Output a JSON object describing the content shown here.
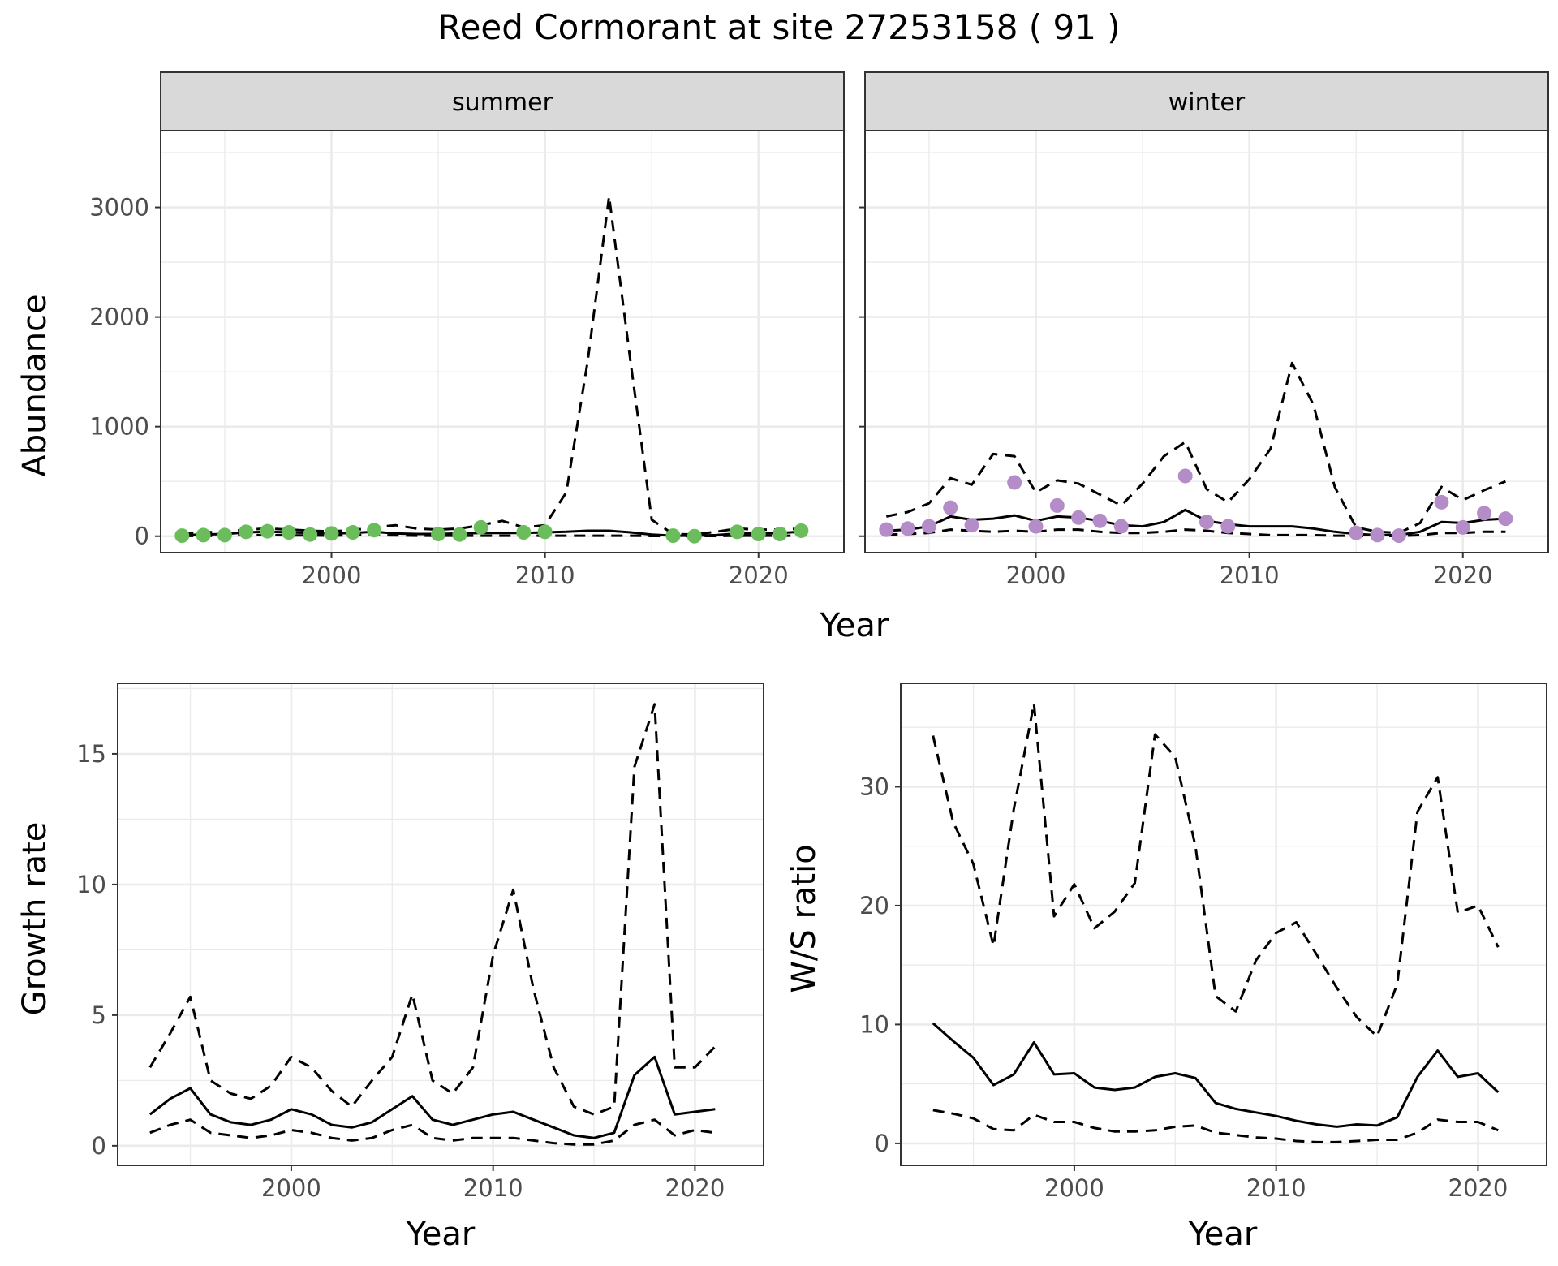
{
  "title": "Reed Cormorant at site 27253158 ( 91 )",
  "chart_data": [
    {
      "type": "line",
      "panel": "summer",
      "xlabel": "Year",
      "ylabel": "Abundance",
      "xlim": [
        1992,
        2024
      ],
      "ylim": [
        -150,
        3700
      ],
      "xticks": [
        2000,
        2010,
        2020
      ],
      "yticks": [
        0,
        1000,
        2000,
        3000
      ],
      "grid": true,
      "point_color": "#6bbd5b",
      "x": [
        1993,
        1994,
        1995,
        1996,
        1997,
        1998,
        1999,
        2000,
        2001,
        2002,
        2003,
        2004,
        2005,
        2006,
        2007,
        2008,
        2009,
        2010,
        2011,
        2012,
        2013,
        2014,
        2015,
        2016,
        2017,
        2018,
        2019,
        2020,
        2021,
        2022
      ],
      "series": [
        {
          "role": "estimate",
          "style": "solid",
          "values": [
            10,
            15,
            20,
            35,
            40,
            35,
            30,
            25,
            30,
            40,
            25,
            20,
            20,
            25,
            30,
            30,
            30,
            35,
            40,
            50,
            50,
            35,
            15,
            5,
            5,
            10,
            25,
            25,
            30,
            40
          ]
        },
        {
          "role": "upper",
          "style": "dashed",
          "values": [
            30,
            35,
            40,
            60,
            70,
            60,
            50,
            45,
            55,
            80,
            100,
            70,
            60,
            70,
            100,
            140,
            80,
            100,
            400,
            1600,
            3100,
            1600,
            150,
            20,
            15,
            40,
            70,
            60,
            60,
            70
          ]
        },
        {
          "role": "lower",
          "style": "dashed",
          "values": [
            2,
            3,
            5,
            10,
            10,
            8,
            8,
            5,
            10,
            10,
            8,
            5,
            5,
            5,
            5,
            5,
            5,
            5,
            5,
            5,
            5,
            5,
            2,
            1,
            1,
            2,
            5,
            5,
            5,
            5
          ]
        },
        {
          "role": "observed",
          "style": "points",
          "values": [
            5,
            10,
            10,
            40,
            45,
            35,
            15,
            25,
            35,
            55,
            null,
            null,
            20,
            15,
            80,
            null,
            35,
            40,
            null,
            null,
            null,
            null,
            null,
            5,
            0,
            null,
            40,
            20,
            20,
            50
          ]
        }
      ]
    },
    {
      "type": "line",
      "panel": "winter",
      "xlabel": "Year",
      "ylabel": "Abundance",
      "xlim": [
        1992,
        2024
      ],
      "ylim": [
        -150,
        3700
      ],
      "xticks": [
        2000,
        2010,
        2020
      ],
      "yticks": [
        0,
        1000,
        2000,
        3000
      ],
      "grid": true,
      "point_color": "#b48cc8",
      "x": [
        1993,
        1994,
        1995,
        1996,
        1997,
        1998,
        1999,
        2000,
        2001,
        2002,
        2003,
        2004,
        2005,
        2006,
        2007,
        2008,
        2009,
        2010,
        2011,
        2012,
        2013,
        2014,
        2015,
        2016,
        2017,
        2018,
        2019,
        2020,
        2021,
        2022
      ],
      "series": [
        {
          "role": "estimate",
          "style": "solid",
          "values": [
            50,
            60,
            90,
            180,
            150,
            160,
            190,
            140,
            180,
            170,
            140,
            100,
            90,
            130,
            240,
            140,
            110,
            90,
            90,
            90,
            70,
            40,
            20,
            10,
            10,
            40,
            130,
            120,
            150,
            160
          ]
        },
        {
          "role": "upper",
          "style": "dashed",
          "values": [
            180,
            220,
            300,
            530,
            470,
            750,
            730,
            400,
            510,
            480,
            380,
            280,
            480,
            730,
            860,
            430,
            310,
            520,
            800,
            1580,
            1200,
            450,
            80,
            40,
            30,
            120,
            450,
            330,
            420,
            500
          ]
        },
        {
          "role": "lower",
          "style": "dashed",
          "values": [
            15,
            20,
            30,
            60,
            50,
            40,
            50,
            40,
            60,
            60,
            40,
            30,
            30,
            40,
            60,
            50,
            30,
            20,
            10,
            10,
            10,
            5,
            5,
            2,
            2,
            10,
            30,
            30,
            40,
            40
          ]
        },
        {
          "role": "observed",
          "style": "points",
          "values": [
            60,
            70,
            90,
            260,
            100,
            null,
            490,
            90,
            280,
            170,
            140,
            90,
            null,
            null,
            550,
            130,
            90,
            null,
            null,
            null,
            null,
            null,
            30,
            10,
            5,
            null,
            310,
            80,
            210,
            160
          ]
        }
      ]
    },
    {
      "type": "line",
      "xlabel": "Year",
      "ylabel": "Growth rate",
      "xlim": [
        1991.4,
        2023.4
      ],
      "ylim": [
        -0.75,
        17.7
      ],
      "xticks": [
        2000,
        2010,
        2020
      ],
      "yticks": [
        0,
        5,
        10,
        15
      ],
      "grid": true,
      "x": [
        1993,
        1994,
        1995,
        1996,
        1997,
        1998,
        1999,
        2000,
        2001,
        2002,
        2003,
        2004,
        2005,
        2006,
        2007,
        2008,
        2009,
        2010,
        2011,
        2012,
        2013,
        2014,
        2015,
        2016,
        2017,
        2018,
        2019,
        2020,
        2021
      ],
      "series": [
        {
          "role": "estimate",
          "style": "solid",
          "values": [
            1.2,
            1.8,
            2.2,
            1.2,
            0.9,
            0.8,
            1.0,
            1.4,
            1.2,
            0.8,
            0.7,
            0.9,
            1.4,
            1.9,
            1.0,
            0.8,
            1.0,
            1.2,
            1.3,
            1.0,
            0.7,
            0.4,
            0.3,
            0.5,
            2.7,
            3.4,
            1.2,
            1.3,
            1.4
          ]
        },
        {
          "role": "upper",
          "style": "dashed",
          "values": [
            3.0,
            4.3,
            5.7,
            2.5,
            2.0,
            1.8,
            2.3,
            3.4,
            3.0,
            2.1,
            1.5,
            2.5,
            3.4,
            5.8,
            2.5,
            2.0,
            3.0,
            7.3,
            9.8,
            6.0,
            3.0,
            1.5,
            1.2,
            1.5,
            14.5,
            16.9,
            3.0,
            3.0,
            3.8
          ]
        },
        {
          "role": "lower",
          "style": "dashed",
          "values": [
            0.5,
            0.8,
            1.0,
            0.5,
            0.4,
            0.3,
            0.4,
            0.6,
            0.5,
            0.3,
            0.2,
            0.3,
            0.6,
            0.8,
            0.3,
            0.2,
            0.3,
            0.3,
            0.3,
            0.2,
            0.1,
            0.05,
            0.05,
            0.2,
            0.8,
            1.0,
            0.4,
            0.6,
            0.5
          ]
        }
      ]
    },
    {
      "type": "line",
      "xlabel": "Year",
      "ylabel": "W/S ratio",
      "xlim": [
        1991.4,
        2023.4
      ],
      "ylim": [
        -1.85,
        38.7
      ],
      "xticks": [
        2000,
        2010,
        2020
      ],
      "yticks": [
        0,
        10,
        20,
        30
      ],
      "grid": true,
      "x": [
        1993,
        1994,
        1995,
        1996,
        1997,
        1998,
        1999,
        2000,
        2001,
        2002,
        2003,
        2004,
        2005,
        2006,
        2007,
        2008,
        2009,
        2010,
        2011,
        2012,
        2013,
        2014,
        2015,
        2016,
        2017,
        2018,
        2019,
        2020,
        2021
      ],
      "series": [
        {
          "role": "estimate",
          "style": "solid",
          "values": [
            10.1,
            8.6,
            7.2,
            4.9,
            5.8,
            8.5,
            5.8,
            5.9,
            4.7,
            4.5,
            4.7,
            5.6,
            5.9,
            5.5,
            3.4,
            2.9,
            2.6,
            2.3,
            1.9,
            1.6,
            1.4,
            1.6,
            1.5,
            2.2,
            5.6,
            7.8,
            5.6,
            5.9,
            4.3
          ]
        },
        {
          "role": "upper",
          "style": "dashed",
          "values": [
            34.3,
            27.0,
            23.5,
            16.6,
            28.1,
            37.0,
            19.1,
            21.8,
            18.1,
            19.5,
            21.9,
            34.4,
            32.5,
            25.0,
            12.4,
            11.1,
            15.4,
            17.7,
            18.6,
            15.9,
            13.1,
            10.6,
            9.0,
            13.4,
            27.9,
            30.8,
            19.4,
            20.0,
            16.5
          ]
        },
        {
          "role": "lower",
          "style": "dashed",
          "values": [
            2.8,
            2.5,
            2.1,
            1.2,
            1.1,
            2.4,
            1.8,
            1.8,
            1.3,
            1.0,
            1.0,
            1.1,
            1.4,
            1.5,
            0.9,
            0.7,
            0.5,
            0.4,
            0.2,
            0.1,
            0.1,
            0.2,
            0.3,
            0.3,
            0.9,
            2.0,
            1.8,
            1.8,
            1.1
          ]
        }
      ]
    }
  ]
}
